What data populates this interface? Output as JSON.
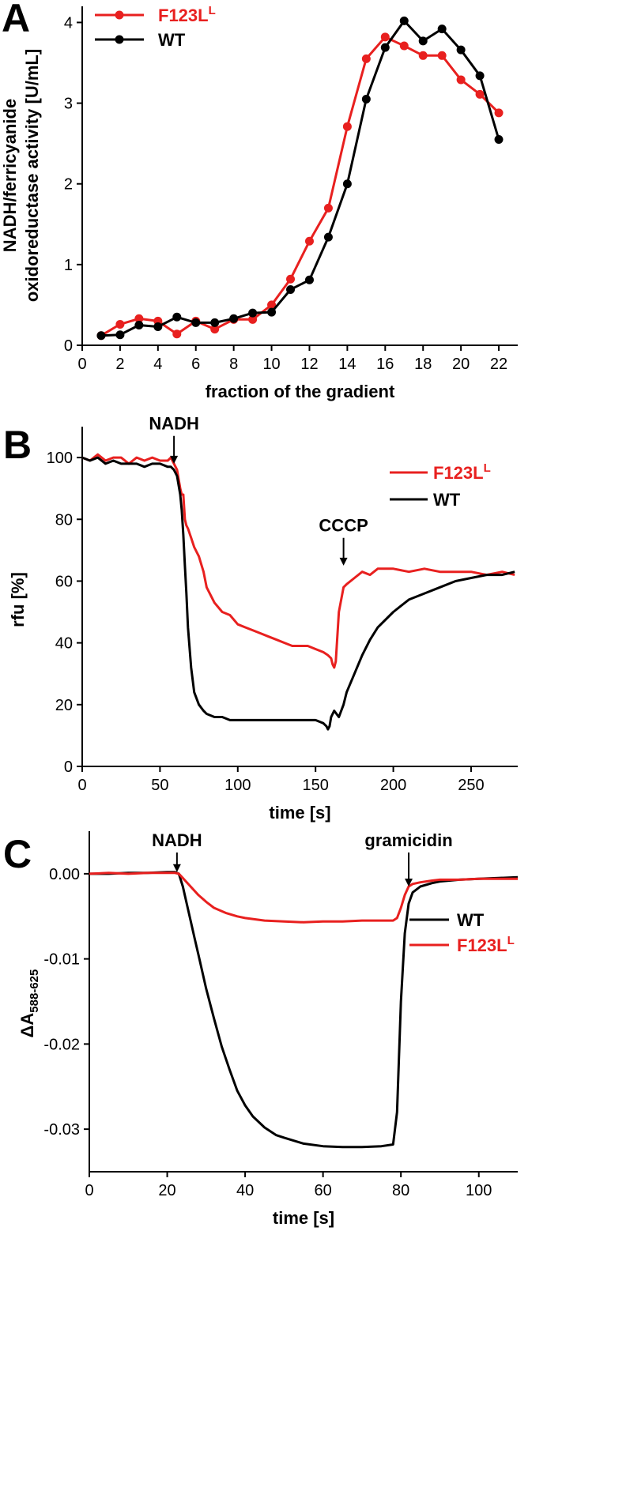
{
  "chart_data": [
    {
      "panel": "A",
      "type": "line",
      "xlabel": "fraction of the gradient",
      "ylabel_lines": [
        "NADH/ferricyanide",
        "oxidoreductase activity [U/mL]"
      ],
      "xlim": [
        0,
        23
      ],
      "ylim": [
        0,
        4.2
      ],
      "xticks": [
        0,
        2,
        4,
        6,
        8,
        10,
        12,
        14,
        16,
        18,
        20,
        22
      ],
      "yticks": [
        0,
        1,
        2,
        3,
        4
      ],
      "markers": true,
      "legend": {
        "placement": "top-left"
      },
      "series": [
        {
          "name": "F123L",
          "name_sup": "L",
          "color": "#e8201f",
          "x": [
            1,
            2,
            3,
            4,
            5,
            6,
            7,
            8,
            9,
            10,
            11,
            12,
            13,
            14,
            15,
            16,
            17,
            18,
            19,
            20,
            21,
            22
          ],
          "y": [
            0.12,
            0.26,
            0.33,
            0.3,
            0.14,
            0.3,
            0.2,
            0.32,
            0.32,
            0.5,
            0.82,
            1.29,
            1.7,
            2.71,
            3.55,
            3.82,
            3.71,
            3.59,
            3.59,
            3.29,
            3.11,
            2.88
          ]
        },
        {
          "name": "WT",
          "name_sup": "",
          "color": "#000000",
          "x": [
            1,
            2,
            3,
            4,
            5,
            6,
            7,
            8,
            9,
            10,
            11,
            12,
            13,
            14,
            15,
            16,
            17,
            18,
            19,
            20,
            21,
            22
          ],
          "y": [
            0.12,
            0.13,
            0.25,
            0.23,
            0.35,
            0.28,
            0.28,
            0.33,
            0.4,
            0.41,
            0.69,
            0.81,
            1.34,
            2.0,
            3.05,
            3.69,
            4.02,
            3.77,
            3.92,
            3.66,
            3.34,
            2.55
          ]
        }
      ]
    },
    {
      "panel": "B",
      "type": "line",
      "xlabel": "time [s]",
      "ylabel": "rfu [%]",
      "xlim": [
        0,
        280
      ],
      "ylim": [
        0,
        110
      ],
      "xticks": [
        0,
        50,
        100,
        150,
        200,
        250
      ],
      "yticks": [
        0,
        20,
        40,
        60,
        80,
        100
      ],
      "markers": false,
      "legend": {
        "placement": "top-right"
      },
      "annotations": [
        {
          "text": "NADH",
          "x": 59,
          "y_tip": 98,
          "y_tail": 107
        },
        {
          "text": "CCCP",
          "x": 168,
          "y_tip": 65,
          "y_tail": 74
        }
      ],
      "series": [
        {
          "name": "F123L",
          "name_sup": "L",
          "color": "#e8201f",
          "x": [
            0,
            5,
            10,
            15,
            20,
            25,
            30,
            35,
            40,
            45,
            50,
            55,
            57,
            59,
            61,
            63,
            64,
            65,
            66,
            67,
            68,
            70,
            72,
            75,
            78,
            80,
            85,
            90,
            95,
            100,
            105,
            110,
            115,
            120,
            125,
            130,
            135,
            140,
            145,
            150,
            155,
            158,
            160,
            161,
            162,
            163,
            165,
            168,
            170,
            175,
            180,
            185,
            190,
            200,
            210,
            220,
            230,
            240,
            250,
            260,
            270,
            278
          ],
          "y": [
            100,
            99,
            101,
            99,
            100,
            100,
            98,
            100,
            99,
            100,
            99,
            99,
            100,
            98,
            96,
            90,
            88,
            88,
            80,
            78,
            77,
            74,
            71,
            68,
            63,
            58,
            53,
            50,
            49,
            46,
            45,
            44,
            43,
            42,
            41,
            40,
            39,
            39,
            39,
            38,
            37,
            36,
            35,
            33,
            32,
            34,
            50,
            58,
            59,
            61,
            63,
            62,
            64,
            64,
            63,
            64,
            63,
            63,
            63,
            62,
            63,
            62
          ]
        },
        {
          "name": "WT",
          "name_sup": "",
          "color": "#000000",
          "x": [
            0,
            5,
            10,
            15,
            20,
            25,
            30,
            35,
            40,
            45,
            50,
            55,
            57,
            59,
            61,
            63,
            64,
            65,
            66,
            67,
            68,
            70,
            72,
            75,
            78,
            80,
            85,
            90,
            95,
            100,
            105,
            110,
            115,
            120,
            130,
            140,
            150,
            155,
            157,
            158,
            159,
            160,
            162,
            165,
            168,
            170,
            175,
            180,
            185,
            190,
            200,
            210,
            220,
            230,
            240,
            250,
            260,
            270,
            278
          ],
          "y": [
            100,
            99,
            100,
            98,
            99,
            98,
            98,
            98,
            97,
            98,
            98,
            97,
            97,
            96,
            94,
            88,
            83,
            75,
            65,
            56,
            45,
            32,
            24,
            20,
            18,
            17,
            16,
            16,
            15,
            15,
            15,
            15,
            15,
            15,
            15,
            15,
            15,
            14,
            13,
            12,
            13,
            16,
            18,
            16,
            20,
            24,
            30,
            36,
            41,
            45,
            50,
            54,
            56,
            58,
            60,
            61,
            62,
            62,
            63
          ]
        }
      ]
    },
    {
      "panel": "C",
      "type": "line",
      "xlabel": "time [s]",
      "ylabel_main": "ΔA",
      "ylabel_sub": "588-625",
      "xlim": [
        0,
        110
      ],
      "ylim": [
        -0.035,
        0.005
      ],
      "xticks": [
        0,
        20,
        40,
        60,
        80,
        100
      ],
      "yticks": [
        0.0,
        -0.01,
        -0.02,
        -0.03
      ],
      "ytick_labels": [
        "0.00",
        "-0.01",
        "-0.02",
        "-0.03"
      ],
      "markers": false,
      "legend": {
        "placement": "right"
      },
      "annotations": [
        {
          "text": "NADH",
          "x": 22.5,
          "y_tip": 0.0002,
          "y_tail": 0.0025
        },
        {
          "text": "gramicidin",
          "x": 82,
          "y_tip": -0.0015,
          "y_tail": 0.0025
        }
      ],
      "series": [
        {
          "name": "WT",
          "name_sup": "",
          "color": "#000000",
          "x": [
            0,
            5,
            10,
            15,
            20,
            22,
            23,
            24,
            25,
            26,
            27,
            28,
            30,
            32,
            34,
            36,
            38,
            40,
            42,
            45,
            48,
            50,
            55,
            60,
            65,
            70,
            75,
            78,
            79,
            80,
            81,
            82,
            83,
            85,
            88,
            90,
            95,
            100,
            105,
            110
          ],
          "y": [
            0.0,
            0.0,
            0.0001,
            0.0001,
            0.0002,
            0.0002,
            0.0,
            -0.0015,
            -0.0035,
            -0.0055,
            -0.0075,
            -0.0095,
            -0.0135,
            -0.017,
            -0.0203,
            -0.023,
            -0.0255,
            -0.0272,
            -0.0285,
            -0.0298,
            -0.0307,
            -0.031,
            -0.0317,
            -0.032,
            -0.0321,
            -0.0321,
            -0.032,
            -0.0318,
            -0.028,
            -0.015,
            -0.007,
            -0.0035,
            -0.0022,
            -0.0015,
            -0.0011,
            -0.0009,
            -0.0007,
            -0.0006,
            -0.0005,
            -0.0004
          ]
        },
        {
          "name": "F123L",
          "name_sup": "L",
          "color": "#e8201f",
          "x": [
            0,
            5,
            10,
            15,
            20,
            22,
            23,
            24,
            26,
            28,
            30,
            32,
            35,
            38,
            40,
            45,
            50,
            55,
            60,
            65,
            70,
            75,
            78,
            79,
            80,
            81,
            82,
            83,
            85,
            88,
            90,
            95,
            100,
            105,
            110
          ],
          "y": [
            0.0,
            0.0001,
            0.0,
            0.0001,
            0.0001,
            0.0001,
            0.0,
            -0.0005,
            -0.0015,
            -0.0025,
            -0.0033,
            -0.004,
            -0.0046,
            -0.005,
            -0.0052,
            -0.0055,
            -0.0056,
            -0.0057,
            -0.0056,
            -0.0056,
            -0.0055,
            -0.0055,
            -0.0055,
            -0.0052,
            -0.004,
            -0.0025,
            -0.0015,
            -0.0012,
            -0.001,
            -0.0008,
            -0.0007,
            -0.0007,
            -0.0006,
            -0.0006,
            -0.0006
          ]
        }
      ]
    }
  ]
}
